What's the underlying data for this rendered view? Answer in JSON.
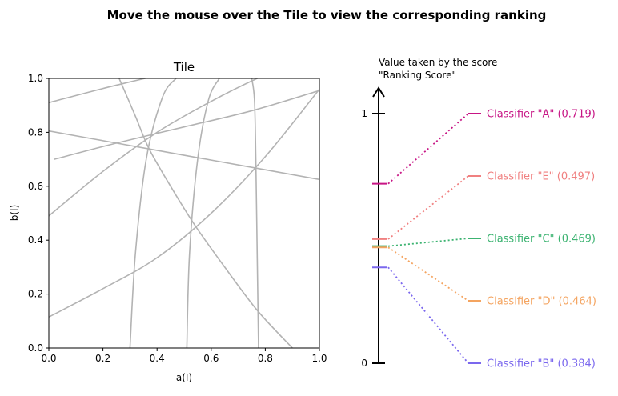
{
  "figure": {
    "title": "Move the mouse over the Tile to view the corresponding ranking"
  },
  "chart_data": [
    {
      "type": "line",
      "title": "Tile",
      "xlabel": "a(I)",
      "ylabel": "b(I)",
      "xlim": [
        0,
        1
      ],
      "ylim": [
        0,
        1
      ],
      "xticks": [
        "0.0",
        "0.2",
        "0.4",
        "0.6",
        "0.8",
        "1.0"
      ],
      "yticks": [
        "0.0",
        "0.2",
        "0.4",
        "0.6",
        "0.8",
        "1.0"
      ],
      "grid": false,
      "line_color": "#b3b3b3",
      "curves": [
        {
          "x": [
            0,
            0.25,
            0.5,
            0.75,
            1.0
          ],
          "y": [
            0.91,
            0.975,
            1.03,
            1.06,
            1.09
          ]
        },
        {
          "x": [
            0,
            0.25,
            0.5,
            0.75,
            1.0
          ],
          "y": [
            0.805,
            0.76,
            0.715,
            0.67,
            0.625
          ]
        },
        {
          "x": [
            0.02,
            0.25,
            0.5,
            0.75,
            1.0
          ],
          "y": [
            0.7,
            0.76,
            0.82,
            0.88,
            0.955
          ]
        },
        {
          "x": [
            0,
            0.2,
            0.4,
            0.6,
            0.77,
            1.0
          ],
          "y": [
            0.49,
            0.655,
            0.8,
            0.915,
            1.0,
            1.1
          ]
        },
        {
          "x": [
            0,
            0.2,
            0.4,
            0.6,
            0.8,
            1.0
          ],
          "y": [
            0.115,
            0.22,
            0.335,
            0.5,
            0.71,
            0.96
          ]
        },
        {
          "x": [
            0.26,
            0.32,
            0.37,
            0.45,
            0.54,
            0.65,
            0.77,
            0.9
          ],
          "y": [
            1.0,
            0.86,
            0.74,
            0.6,
            0.455,
            0.3,
            0.14,
            0.0
          ]
        },
        {
          "x": [
            0.3,
            0.32,
            0.36,
            0.42,
            0.47
          ],
          "y": [
            0.0,
            0.35,
            0.7,
            0.93,
            1.0
          ]
        },
        {
          "x": [
            0.51,
            0.52,
            0.55,
            0.59,
            0.63
          ],
          "y": [
            0.0,
            0.35,
            0.7,
            0.92,
            1.0
          ]
        },
        {
          "x": [
            0.775,
            0.77,
            0.765,
            0.76,
            0.75
          ],
          "y": [
            0.0,
            0.35,
            0.7,
            0.92,
            1.0
          ]
        }
      ]
    },
    {
      "type": "scatter",
      "title": "Value taken by the score\n\"Ranking Score\"",
      "title_lines": [
        "Value taken by the score",
        "\"Ranking Score\""
      ],
      "ylim": [
        0,
        1.1
      ],
      "ytick_values": [
        0,
        1
      ],
      "yticks": [
        "0",
        "1"
      ],
      "points": [
        {
          "name": "Classifier \"A\"",
          "left": 0.719,
          "right": 1.0,
          "label": "Classifier \"A\" (0.719)",
          "color": "#c71585"
        },
        {
          "name": "Classifier \"E\"",
          "left": 0.497,
          "right": 0.75,
          "label": "Classifier \"E\" (0.497)",
          "color": "#f08080"
        },
        {
          "name": "Classifier \"C\"",
          "left": 0.469,
          "right": 0.5,
          "label": "Classifier \"C\" (0.469)",
          "color": "#3cb371"
        },
        {
          "name": "Classifier \"D\"",
          "left": 0.464,
          "right": 0.25,
          "label": "Classifier \"D\" (0.464)",
          "color": "#f4a460"
        },
        {
          "name": "Classifier \"B\"",
          "left": 0.384,
          "right": 0.0,
          "label": "Classifier \"B\" (0.384)",
          "color": "#7b68ee"
        }
      ]
    }
  ]
}
